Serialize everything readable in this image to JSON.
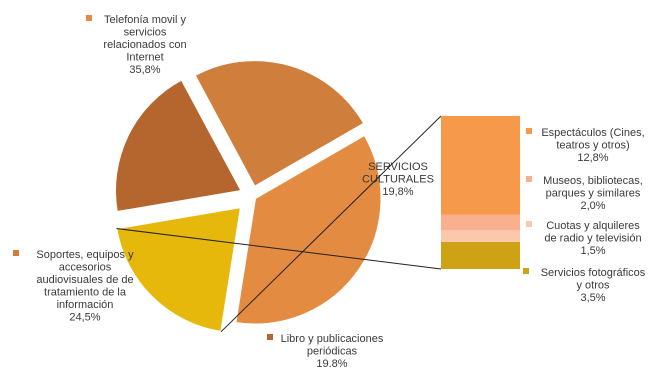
{
  "chart_data": {
    "type": "pie",
    "title": "",
    "slices": [
      {
        "label_lines": [
          "Telefonía movil y",
          "servicios",
          "relacionados con",
          "Internet"
        ],
        "value_label": "35,8%",
        "value": 35.8,
        "color": "#E38B40"
      },
      {
        "label_lines": [
          "SERVICIOS",
          "CULTURALES"
        ],
        "value_label": "19,8%",
        "value": 19.8,
        "color": "#E6B80C"
      },
      {
        "label_lines": [
          "Libro y publicaciones",
          "periódicas"
        ],
        "value_label": "19.8%",
        "value": 19.8,
        "color": "#B5652E"
      },
      {
        "label_lines": [
          "Soportes, equipos y",
          "accesorios",
          "audiovisuales  de de",
          "tratamiento de la",
          "información"
        ],
        "value_label": "24,5%",
        "value": 24.5,
        "color": "#CF7E3C"
      }
    ],
    "breakdown": {
      "of": "SERVICIOS CULTURALES",
      "segments": [
        {
          "label_lines": [
            "Espectáculos (Cines,",
            "teatros y otros)"
          ],
          "value_label": "12,8%",
          "value": 12.8,
          "color": "#F7994B"
        },
        {
          "label_lines": [
            "Museos, bibliotecas,",
            "parques y similares"
          ],
          "value_label": "2,0%",
          "value": 2.0,
          "color": "#F8B08E"
        },
        {
          "label_lines": [
            "Cuotas y alquileres",
            "de radio y televisión"
          ],
          "value_label": "1,5%",
          "value": 1.5,
          "color": "#FBC8AC"
        },
        {
          "label_lines": [
            "Servicios fotográficos",
            "y otros"
          ],
          "value_label": "3,5%",
          "value": 3.5,
          "color": "#CFA115"
        }
      ]
    }
  }
}
